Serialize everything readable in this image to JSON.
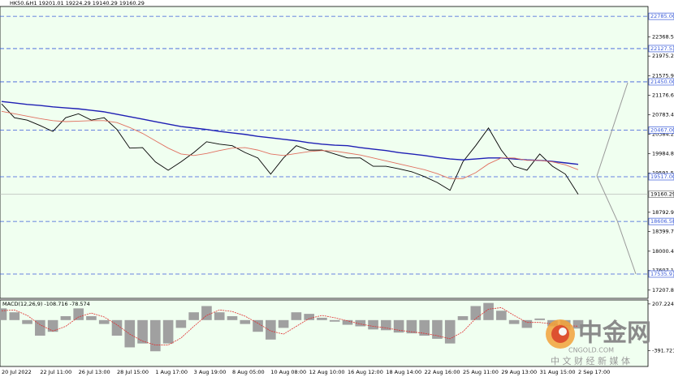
{
  "chart_data": [
    {
      "type": "line",
      "title": "HK50.&H1  19201.01 19224.29 19140.29 19160.29",
      "categories": [
        "20 Jul 2022",
        null,
        null,
        "22 Jul 11:00",
        null,
        null,
        "26 Jul 13:00",
        null,
        null,
        "28 Jul 15:00",
        null,
        null,
        "1 Aug 17:00",
        null,
        null,
        "3 Aug 19:00",
        null,
        null,
        "8 Aug 05:00",
        null,
        null,
        "10 Aug 08:00",
        null,
        null,
        "12 Aug 10:00",
        null,
        null,
        "16 Aug 12:00",
        null,
        null,
        "18 Aug 14:00",
        null,
        null,
        "22 Aug 16:00",
        null,
        null,
        "25 Aug 11:00",
        null,
        null,
        "29 Aug 13:00",
        null,
        null,
        "31 Aug 15:00",
        null,
        null,
        "2 Sep 17:00"
      ],
      "series": [
        {
          "color": "#000000",
          "values": [
            21000,
            20720,
            20670,
            20560,
            20440,
            20720,
            20800,
            20670,
            20720,
            20480,
            20100,
            20110,
            19820,
            19650,
            19820,
            20010,
            20230,
            20180,
            20150,
            20010,
            19900,
            19570,
            19900,
            20150,
            20060,
            20060,
            19980,
            19900,
            19900,
            19730,
            19730,
            19680,
            19620,
            19520,
            19400,
            19240,
            19820,
            20150,
            20510,
            20060,
            19730,
            19650,
            19980,
            19730,
            19570,
            19160.29
          ]
        },
        {
          "color": "#1f1fb4",
          "values": [
            21050,
            21020,
            20990,
            20970,
            20940,
            20920,
            20900,
            20870,
            20840,
            20790,
            20740,
            20690,
            20640,
            20590,
            20540,
            20510,
            20480,
            20440,
            20410,
            20380,
            20340,
            20310,
            20280,
            20250,
            20210,
            20180,
            20160,
            20150,
            20110,
            20080,
            20050,
            20010,
            19980,
            19950,
            19910,
            19880,
            19860,
            19880,
            19900,
            19900,
            19880,
            19860,
            19850,
            19830,
            19800,
            19770
          ]
        },
        {
          "color": "#e07060",
          "values": [
            20850,
            20800,
            20750,
            20700,
            20660,
            20640,
            20650,
            20660,
            20660,
            20620,
            20520,
            20400,
            20250,
            20100,
            19980,
            19950,
            19990,
            20050,
            20100,
            20110,
            20060,
            19980,
            19950,
            19990,
            20030,
            20050,
            20040,
            20000,
            19960,
            19900,
            19840,
            19780,
            19720,
            19660,
            19580,
            19480,
            19480,
            19600,
            19780,
            19900,
            19900,
            19850,
            19850,
            19820,
            19760,
            19660
          ]
        }
      ],
      "ylim": [
        17040,
        22985
      ],
      "yticks": [
        {
          "value": 22368.5,
          "label": "22368.50"
        },
        21975.25,
        21575.95,
        21176.65,
        {
          "value": 20783.4,
          "label": "20783.40"
        },
        {
          "value": 20384.2,
          "label": "20384.20"
        },
        {
          "value": 19984.8,
          "label": "19984.80"
        },
        19591.55,
        18792.95,
        {
          "value": 18399.7,
          "label": "18399.70"
        },
        {
          "value": 18000.4,
          "label": "18000.40"
        },
        17607.15,
        17207.85
      ],
      "levels": [
        {
          "value": 22785,
          "label": "22785.00"
        },
        {
          "value": 22127.53,
          "label": "22127.53"
        },
        {
          "value": 21450,
          "label": "21450.00"
        },
        {
          "value": 20467,
          "label": "20467.00"
        },
        {
          "value": 19517,
          "label": "19517.00"
        },
        {
          "value": 18606.58,
          "label": "18606.58"
        },
        {
          "value": 17535.97,
          "label": "17535.97"
        }
      ],
      "level_color": "#3a5bd9",
      "last_price": {
        "value": 19160.29,
        "label": "19160.29"
      },
      "background": "#f0fff0"
    },
    {
      "type": "macd",
      "title": "MACD(12,26,9) -108.716 -78.574",
      "histogram": {
        "color": "#a0a0a0",
        "values": [
          150,
          100,
          -50,
          -200,
          -150,
          50,
          150,
          50,
          -50,
          -200,
          -350,
          -300,
          -400,
          -300,
          -100,
          100,
          180,
          100,
          50,
          -50,
          -150,
          -250,
          -100,
          100,
          80,
          30,
          -20,
          -60,
          -80,
          -120,
          -130,
          -160,
          -170,
          -200,
          -240,
          -300,
          50,
          180,
          220,
          120,
          -50,
          -100,
          20,
          -80,
          -130,
          -108.716
        ]
      },
      "signal": {
        "color": "#e03030",
        "values": [
          120,
          130,
          60,
          -60,
          -140,
          -80,
          40,
          90,
          40,
          -60,
          -180,
          -270,
          -320,
          -320,
          -230,
          -80,
          60,
          130,
          110,
          50,
          -40,
          -140,
          -180,
          -80,
          20,
          60,
          30,
          -10,
          -50,
          -80,
          -100,
          -130,
          -150,
          -170,
          -200,
          -240,
          -150,
          20,
          140,
          160,
          60,
          -30,
          -30,
          -50,
          -70,
          -78.574
        ]
      },
      "ylim": [
        -595,
        258
      ],
      "yticks": [
        207.224,
        -391.721
      ],
      "background": "#f0fff0"
    }
  ],
  "watermark": {
    "brand": "中金网",
    "site": "CNGOLD.COM",
    "slogan": "中 文 财 经 新 媒 体"
  }
}
